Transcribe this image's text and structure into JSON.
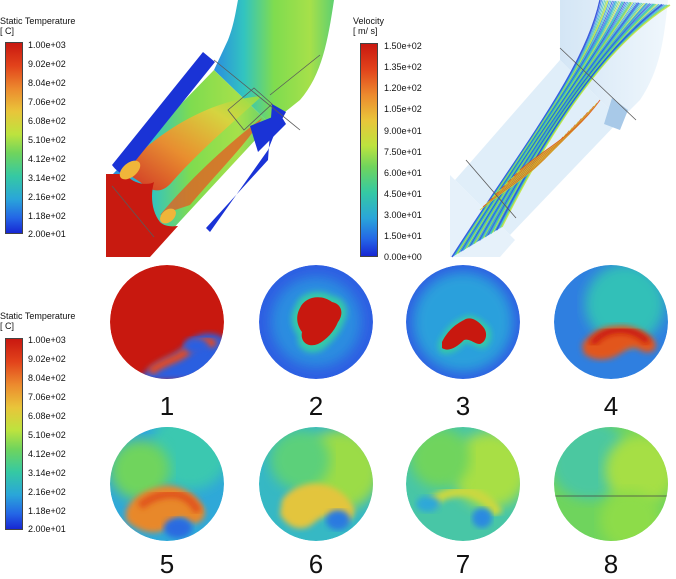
{
  "temp_legend_top": {
    "title": "Static Temperature",
    "unit": "[ C]",
    "ticks": [
      "1.00e+03",
      "9.02e+02",
      "8.04e+02",
      "7.06e+02",
      "6.08e+02",
      "5.10e+02",
      "4.12e+02",
      "3.14e+02",
      "2.16e+02",
      "1.18e+02",
      "2.00e+01"
    ]
  },
  "velocity_legend": {
    "title": "Velocity",
    "unit": "[ m/ s]",
    "ticks": [
      "1.50e+02",
      "1.35e+02",
      "1.20e+02",
      "1.05e+02",
      "9.00e+01",
      "7.50e+01",
      "6.00e+01",
      "4.50e+01",
      "3.00e+01",
      "1.50e+01",
      "0.00e+00"
    ]
  },
  "temp_legend_bottom": {
    "title": "Static Temperature",
    "unit": "[ C]",
    "ticks": [
      "1.00e+03",
      "9.02e+02",
      "8.04e+02",
      "7.06e+02",
      "6.08e+02",
      "5.10e+02",
      "4.12e+02",
      "3.14e+02",
      "2.16e+02",
      "1.18e+02",
      "2.00e+01"
    ]
  },
  "cross_sections": [
    "1",
    "2",
    "3",
    "4",
    "5",
    "6",
    "7",
    "8"
  ]
}
